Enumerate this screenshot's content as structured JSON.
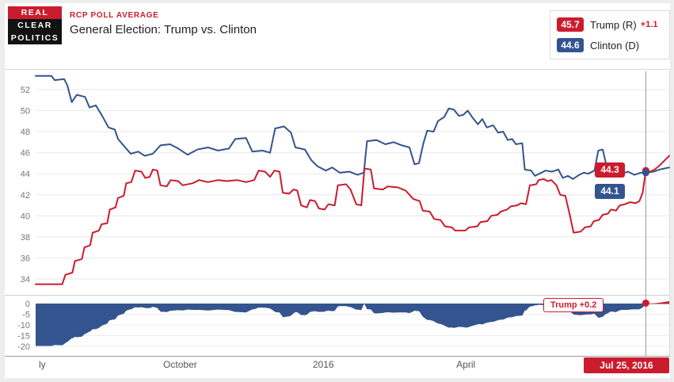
{
  "colors": {
    "red": "#cb1c2e",
    "blue": "#34548f"
  },
  "logo": {
    "line1": "REAL",
    "line2": "CLEAR",
    "line3": "POLITICS"
  },
  "header": {
    "kicker": "RCP POLL AVERAGE",
    "title": "General Election: Trump vs. Clinton"
  },
  "legend": {
    "items": [
      {
        "value": "45.7",
        "label": "Trump (R)",
        "change": "+1.1"
      },
      {
        "value": "44.6",
        "label": "Clinton (D)",
        "change": ""
      }
    ]
  },
  "chart_labels": {
    "trump_point": "44.3",
    "clinton_point": "44.1",
    "spread_point": "Trump +0.2",
    "date": "Jul 25, 2016"
  },
  "chart_data": {
    "type": "line",
    "title": "General Election: Trump vs. Clinton",
    "x_axis_labels": [
      {
        "label": "ly",
        "f": 5
      },
      {
        "label": "October",
        "f": 228
      },
      {
        "label": "2016",
        "f": 454
      },
      {
        "label": "April",
        "f": 679
      }
    ],
    "main_yticks": [
      52,
      50,
      48,
      46,
      44,
      42,
      40,
      38,
      36,
      34
    ],
    "spread_yticks": [
      0,
      -5,
      -10,
      -15,
      -20
    ],
    "ylim_main": [
      32.5,
      53.4
    ],
    "ylim_spread": [
      -22,
      2
    ],
    "grid": true,
    "crosshair_f": 963,
    "crosshair_values": {
      "trump": 44.3,
      "clinton": 44.1,
      "spread": 0.2
    },
    "series": [
      {
        "name": "Trump (R)",
        "color": "#cb1c2e",
        "points": [
          [
            0,
            33.5
          ],
          [
            42,
            33.5
          ],
          [
            47,
            34.4
          ],
          [
            58,
            34.6
          ],
          [
            62,
            35.7
          ],
          [
            73,
            35.9
          ],
          [
            77,
            37.0
          ],
          [
            86,
            37.2
          ],
          [
            90,
            38.4
          ],
          [
            100,
            38.6
          ],
          [
            104,
            39.2
          ],
          [
            113,
            39.3
          ],
          [
            117,
            40.6
          ],
          [
            126,
            40.8
          ],
          [
            130,
            41.7
          ],
          [
            139,
            41.9
          ],
          [
            143,
            43.1
          ],
          [
            151,
            43.2
          ],
          [
            157,
            44.3
          ],
          [
            167,
            44.2
          ],
          [
            173,
            43.6
          ],
          [
            180,
            43.7
          ],
          [
            185,
            44.4
          ],
          [
            192,
            44.3
          ],
          [
            197,
            42.9
          ],
          [
            207,
            42.8
          ],
          [
            213,
            43.4
          ],
          [
            225,
            43.3
          ],
          [
            232,
            42.9
          ],
          [
            248,
            43.1
          ],
          [
            258,
            43.4
          ],
          [
            272,
            43.2
          ],
          [
            288,
            43.4
          ],
          [
            302,
            43.3
          ],
          [
            318,
            43.4
          ],
          [
            332,
            43.2
          ],
          [
            345,
            43.4
          ],
          [
            352,
            44.3
          ],
          [
            362,
            44.2
          ],
          [
            370,
            43.7
          ],
          [
            377,
            44.3
          ],
          [
            385,
            44.2
          ],
          [
            390,
            42.2
          ],
          [
            400,
            42.1
          ],
          [
            407,
            42.5
          ],
          [
            413,
            42.4
          ],
          [
            419,
            41.0
          ],
          [
            428,
            40.8
          ],
          [
            433,
            41.5
          ],
          [
            441,
            41.4
          ],
          [
            447,
            40.7
          ],
          [
            456,
            40.6
          ],
          [
            462,
            41.1
          ],
          [
            472,
            41.0
          ],
          [
            477,
            42.9
          ],
          [
            490,
            43.0
          ],
          [
            497,
            42.5
          ],
          [
            506,
            41.1
          ],
          [
            514,
            41.0
          ],
          [
            519,
            44.5
          ],
          [
            529,
            44.4
          ],
          [
            534,
            42.6
          ],
          [
            548,
            42.5
          ],
          [
            556,
            42.8
          ],
          [
            572,
            42.7
          ],
          [
            584,
            42.4
          ],
          [
            596,
            41.6
          ],
          [
            606,
            41.4
          ],
          [
            611,
            40.5
          ],
          [
            622,
            40.4
          ],
          [
            629,
            39.7
          ],
          [
            639,
            39.6
          ],
          [
            646,
            39.0
          ],
          [
            657,
            38.9
          ],
          [
            662,
            38.6
          ],
          [
            678,
            38.6
          ],
          [
            684,
            38.9
          ],
          [
            697,
            39.0
          ],
          [
            702,
            39.4
          ],
          [
            713,
            39.5
          ],
          [
            719,
            40.0
          ],
          [
            729,
            40.1
          ],
          [
            734,
            40.4
          ],
          [
            744,
            40.6
          ],
          [
            750,
            40.9
          ],
          [
            760,
            41.0
          ],
          [
            766,
            41.2
          ],
          [
            774,
            41.1
          ],
          [
            780,
            42.9
          ],
          [
            790,
            43.0
          ],
          [
            794,
            43.4
          ],
          [
            802,
            43.5
          ],
          [
            808,
            43.3
          ],
          [
            814,
            43.4
          ],
          [
            822,
            42.9
          ],
          [
            828,
            42.0
          ],
          [
            836,
            41.9
          ],
          [
            843,
            40.1
          ],
          [
            849,
            38.4
          ],
          [
            860,
            38.5
          ],
          [
            867,
            38.9
          ],
          [
            876,
            39.0
          ],
          [
            881,
            39.5
          ],
          [
            889,
            39.6
          ],
          [
            895,
            40.1
          ],
          [
            903,
            40.2
          ],
          [
            908,
            40.6
          ],
          [
            916,
            40.5
          ],
          [
            922,
            41.0
          ],
          [
            930,
            41.1
          ],
          [
            938,
            41.3
          ],
          [
            947,
            41.2
          ],
          [
            953,
            41.4
          ],
          [
            958,
            42.2
          ],
          [
            963,
            44.3
          ],
          [
            970,
            44.2
          ],
          [
            977,
            44.4
          ],
          [
            985,
            44.8
          ],
          [
            1000,
            45.7
          ]
        ]
      },
      {
        "name": "Clinton (D)",
        "color": "#34548f",
        "points": [
          [
            0,
            53.3
          ],
          [
            25,
            53.3
          ],
          [
            30,
            52.9
          ],
          [
            45,
            53.0
          ],
          [
            50,
            52.4
          ],
          [
            57,
            50.8
          ],
          [
            65,
            51.5
          ],
          [
            78,
            51.3
          ],
          [
            85,
            50.3
          ],
          [
            95,
            50.5
          ],
          [
            105,
            49.5
          ],
          [
            115,
            48.4
          ],
          [
            125,
            48.2
          ],
          [
            130,
            47.3
          ],
          [
            140,
            46.6
          ],
          [
            150,
            45.9
          ],
          [
            162,
            46.1
          ],
          [
            172,
            45.7
          ],
          [
            185,
            45.9
          ],
          [
            197,
            46.7
          ],
          [
            212,
            46.8
          ],
          [
            225,
            46.4
          ],
          [
            240,
            45.8
          ],
          [
            255,
            46.3
          ],
          [
            272,
            46.5
          ],
          [
            288,
            46.2
          ],
          [
            305,
            46.4
          ],
          [
            315,
            47.3
          ],
          [
            332,
            47.4
          ],
          [
            342,
            46.1
          ],
          [
            358,
            46.2
          ],
          [
            370,
            46.0
          ],
          [
            378,
            48.3
          ],
          [
            392,
            48.5
          ],
          [
            403,
            47.9
          ],
          [
            410,
            46.5
          ],
          [
            425,
            46.3
          ],
          [
            435,
            45.3
          ],
          [
            445,
            44.7
          ],
          [
            458,
            44.3
          ],
          [
            468,
            44.6
          ],
          [
            480,
            44.1
          ],
          [
            495,
            44.2
          ],
          [
            508,
            43.9
          ],
          [
            518,
            44.1
          ],
          [
            523,
            47.1
          ],
          [
            538,
            47.2
          ],
          [
            552,
            46.8
          ],
          [
            565,
            47.0
          ],
          [
            578,
            46.7
          ],
          [
            590,
            46.5
          ],
          [
            598,
            44.9
          ],
          [
            605,
            45.0
          ],
          [
            612,
            46.9
          ],
          [
            618,
            48.1
          ],
          [
            628,
            48.0
          ],
          [
            635,
            49.0
          ],
          [
            645,
            49.4
          ],
          [
            652,
            50.2
          ],
          [
            660,
            50.1
          ],
          [
            668,
            49.5
          ],
          [
            675,
            49.6
          ],
          [
            682,
            50.0
          ],
          [
            690,
            49.3
          ],
          [
            698,
            48.7
          ],
          [
            705,
            49.2
          ],
          [
            712,
            48.4
          ],
          [
            722,
            48.6
          ],
          [
            730,
            47.9
          ],
          [
            738,
            48.0
          ],
          [
            745,
            47.2
          ],
          [
            752,
            47.3
          ],
          [
            758,
            46.8
          ],
          [
            768,
            46.9
          ],
          [
            772,
            44.4
          ],
          [
            782,
            44.3
          ],
          [
            788,
            43.8
          ],
          [
            795,
            44.0
          ],
          [
            805,
            44.3
          ],
          [
            815,
            44.2
          ],
          [
            825,
            44.4
          ],
          [
            832,
            43.6
          ],
          [
            840,
            43.8
          ],
          [
            848,
            43.5
          ],
          [
            858,
            43.9
          ],
          [
            865,
            44.1
          ],
          [
            872,
            44.0
          ],
          [
            882,
            44.3
          ],
          [
            888,
            46.2
          ],
          [
            895,
            46.3
          ],
          [
            900,
            45.0
          ],
          [
            908,
            44.3
          ],
          [
            915,
            44.5
          ],
          [
            925,
            44.0
          ],
          [
            935,
            44.2
          ],
          [
            945,
            43.9
          ],
          [
            955,
            44.1
          ],
          [
            963,
            44.1
          ],
          [
            975,
            44.2
          ],
          [
            985,
            44.4
          ],
          [
            1000,
            44.6
          ]
        ]
      }
    ],
    "spread_note": "bottom panel = Trump minus Clinton, filled blue when Clinton leads, red when Trump leads"
  }
}
